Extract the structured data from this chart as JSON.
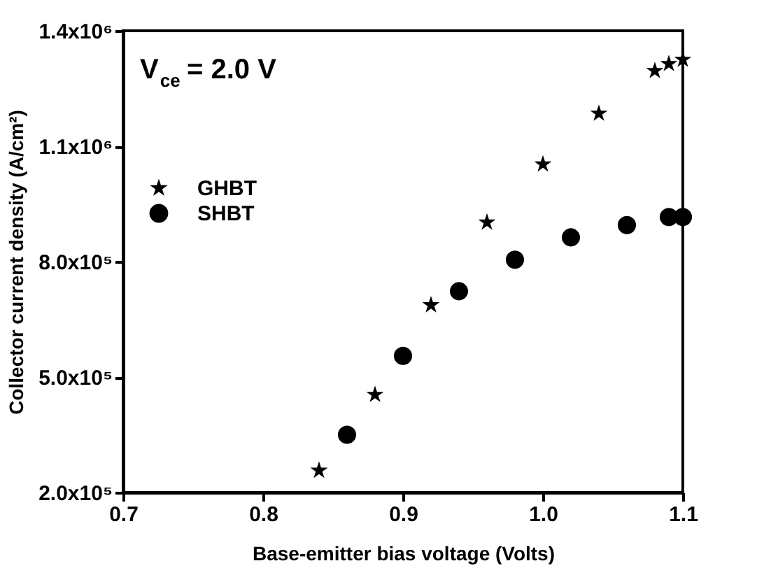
{
  "chart_data": {
    "type": "scatter",
    "xlabel": "Base-emitter bias voltage (Volts)",
    "ylabel": "Collector current density (A/cm²)",
    "annotations": [
      "V$_{ce}$ = 2.0 V"
    ],
    "series": [
      {
        "name": "GHBT",
        "color": "#000000",
        "marker": "star",
        "x": [
          0.84,
          0.88,
          0.92,
          0.96,
          1.0,
          1.04,
          1.08,
          1.09,
          1.1
        ],
        "values": [
          257000,
          454000,
          687000,
          902000,
          1053000,
          1185000,
          1296000,
          1314000,
          1325000
        ]
      },
      {
        "name": "SHBT",
        "color": "#000000",
        "marker": "circle",
        "x": [
          0.86,
          0.9,
          0.94,
          0.98,
          1.02,
          1.06,
          1.09,
          1.1
        ],
        "values": [
          350000,
          555000,
          723000,
          805000,
          863000,
          895000,
          916000,
          916000
        ]
      }
    ],
    "xlim": [
      0.7,
      1.1
    ],
    "xticks": [
      0.7,
      0.8,
      0.9,
      {
        "value": 1.0,
        "label": "1.0"
      },
      1.1
    ],
    "ylim": [
      200000,
      1400000
    ],
    "yticks": [
      {
        "value": 200000,
        "label": "2.0x10⁵"
      },
      {
        "value": 500000,
        "label": "5.0x10⁵"
      },
      {
        "value": 800000,
        "label": "8.0x10⁵"
      },
      {
        "value": 1100000,
        "label": "1.1x10⁶"
      },
      {
        "value": 1400000,
        "label": "1.4x10⁶"
      }
    ],
    "legend": "top left",
    "grid": false
  }
}
